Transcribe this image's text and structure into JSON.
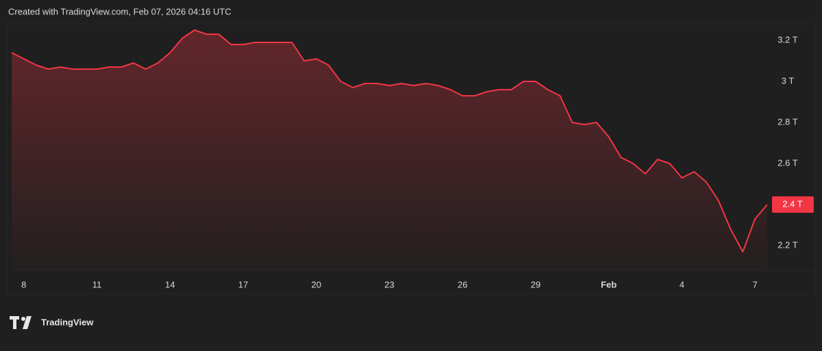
{
  "header": "Created with TradingView.com, Feb 07, 2026 04:16 UTC",
  "brand": "TradingView",
  "chart_data": {
    "type": "area",
    "color": "#f23645",
    "categories": [
      null,
      "8",
      null,
      null,
      null,
      null,
      null,
      "11",
      null,
      null,
      null,
      null,
      null,
      "14",
      null,
      null,
      null,
      null,
      null,
      "17",
      null,
      null,
      null,
      null,
      null,
      "20",
      null,
      null,
      null,
      null,
      null,
      "23",
      null,
      null,
      null,
      null,
      null,
      "26",
      null,
      null,
      null,
      null,
      null,
      "29",
      null,
      null,
      null,
      null,
      null,
      "Feb",
      null,
      null,
      null,
      null,
      null,
      "4",
      null,
      null,
      null,
      null,
      null,
      "7",
      null
    ],
    "values": [
      3.14,
      3.11,
      3.08,
      3.06,
      3.07,
      3.06,
      3.06,
      3.06,
      3.07,
      3.07,
      3.09,
      3.06,
      3.09,
      3.14,
      3.21,
      3.25,
      3.23,
      3.23,
      3.18,
      3.18,
      3.19,
      3.19,
      3.19,
      3.19,
      3.1,
      3.11,
      3.08,
      3.0,
      2.97,
      2.99,
      2.99,
      2.98,
      2.99,
      2.98,
      2.99,
      2.98,
      2.96,
      2.93,
      2.93,
      2.95,
      2.96,
      2.96,
      3.0,
      3.0,
      2.96,
      2.93,
      2.8,
      2.79,
      2.8,
      2.73,
      2.63,
      2.6,
      2.55,
      2.62,
      2.6,
      2.53,
      2.56,
      2.51,
      2.42,
      2.28,
      2.17,
      2.33,
      2.4
    ],
    "ylim": [
      2.08,
      3.28
    ],
    "yticks": [
      {
        "value": 2.2,
        "label": "2.2 T"
      },
      {
        "value": 2.4,
        "label": "2.4 T"
      },
      {
        "value": 2.6,
        "label": "2.6 T"
      },
      {
        "value": 2.8,
        "label": "2.8 T"
      },
      {
        "value": 3,
        "label": "3 T"
      },
      {
        "value": 3.2,
        "label": "3.2 T"
      }
    ],
    "last_price": {
      "value": 2.4,
      "label": "2.4 T"
    },
    "grid": false
  }
}
